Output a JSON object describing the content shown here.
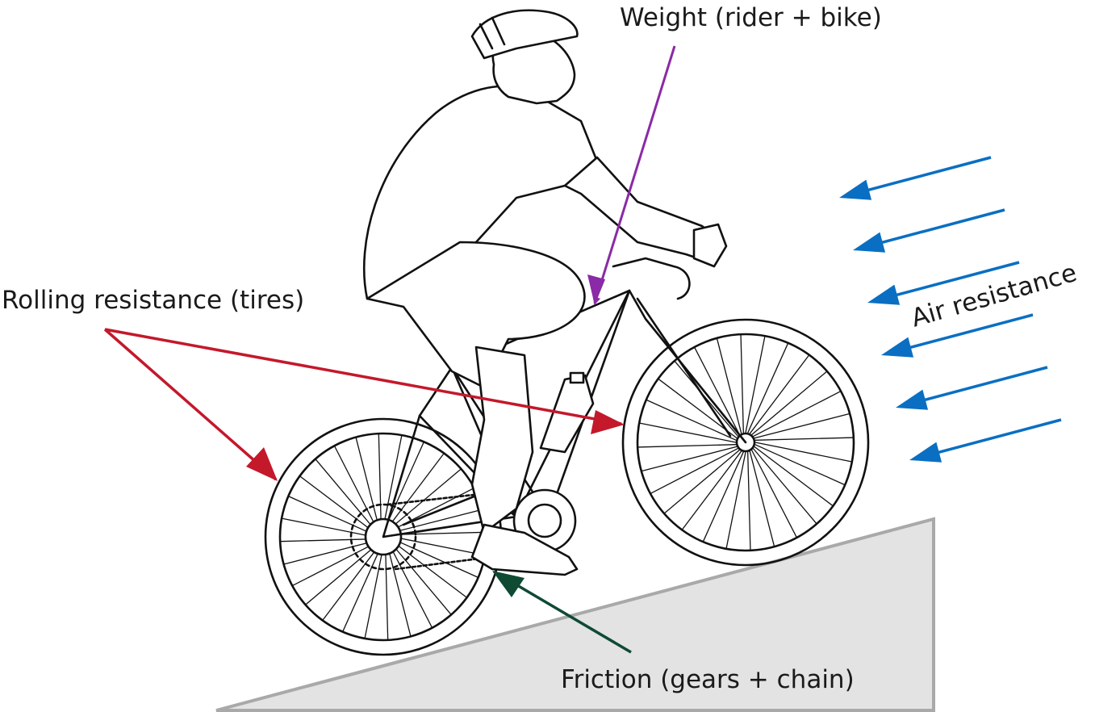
{
  "labels": {
    "weight": "Weight (rider + bike)",
    "rolling": "Rolling resistance (tires)",
    "air": "Air resistance",
    "friction": "Friction (gears + chain)"
  },
  "colors": {
    "weight_arrow": "#8a2aa6",
    "rolling_arrow": "#c4182b",
    "friction_arrow": "#0f4a33",
    "air_arrow": "#0a6fc2",
    "ramp_fill": "#e3e3e3",
    "ramp_stroke": "#a9a9a9"
  },
  "icons": {
    "rider": "cyclist-illustration",
    "bicycle": "road-bike-illustration",
    "ramp": "slope-triangle"
  },
  "air_arrow_count": 6
}
